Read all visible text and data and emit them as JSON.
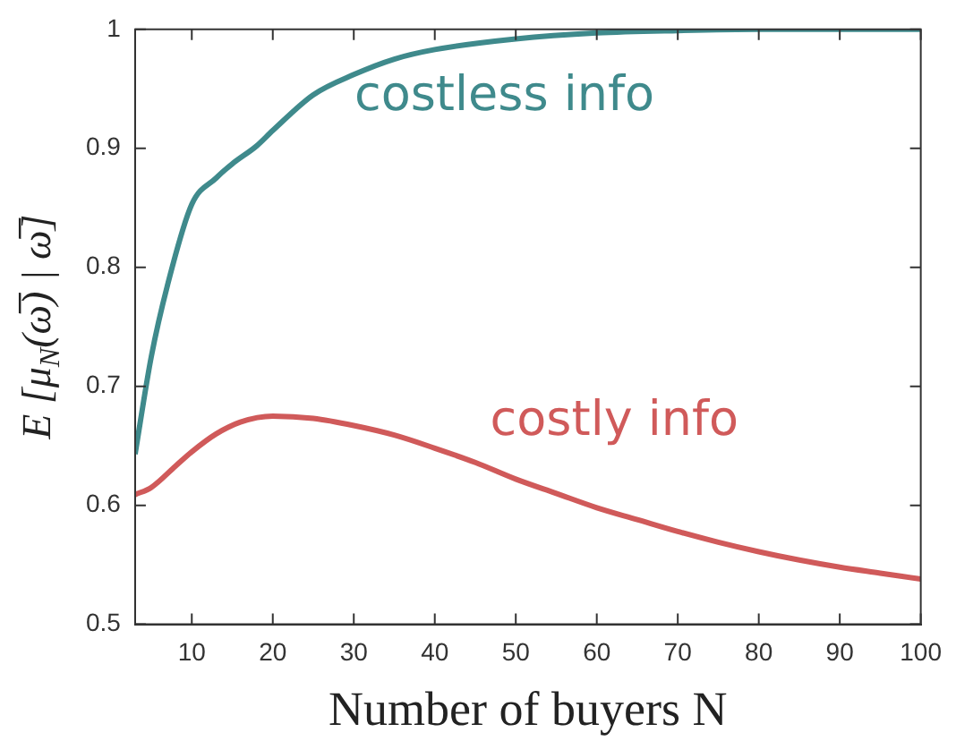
{
  "chart_data": {
    "type": "line",
    "xlabel": "Number of buyers N",
    "ylabel": "E [μ$_{N}$(ω̅) | ω̅]",
    "xlim": [
      3,
      100
    ],
    "xticks": [
      10,
      20,
      30,
      40,
      50,
      60,
      70,
      80,
      90,
      100
    ],
    "ylim": [
      0.5,
      1
    ],
    "yticks": [
      0.5,
      0.6,
      0.7,
      0.8,
      0.9,
      1
    ],
    "grid": false,
    "legend": false,
    "marker": "none",
    "line_style": "solid",
    "series": [
      {
        "name": "costless info",
        "color": "#3f8a8c",
        "x": [
          3,
          5,
          7,
          10,
          13,
          15,
          18,
          20,
          25,
          30,
          35,
          40,
          50,
          60,
          70,
          80,
          90,
          100
        ],
        "values": [
          0.643,
          0.725,
          0.785,
          0.853,
          0.875,
          0.887,
          0.902,
          0.915,
          0.945,
          0.962,
          0.975,
          0.983,
          0.992,
          0.997,
          0.999,
          1,
          1,
          1
        ]
      },
      {
        "name": "costly info",
        "color": "#d05a5a",
        "x": [
          3,
          5,
          8,
          10,
          13,
          16,
          20,
          25,
          30,
          35,
          40,
          45,
          50,
          55,
          60,
          65,
          70,
          75,
          80,
          85,
          90,
          95,
          100
        ],
        "values": [
          0.609,
          0.615,
          0.633,
          0.645,
          0.66,
          0.67,
          0.675,
          0.673,
          0.667,
          0.659,
          0.648,
          0.636,
          0.622,
          0.61,
          0.598,
          0.588,
          0.578,
          0.569,
          0.561,
          0.554,
          0.548,
          0.543,
          0.538
        ]
      }
    ]
  }
}
